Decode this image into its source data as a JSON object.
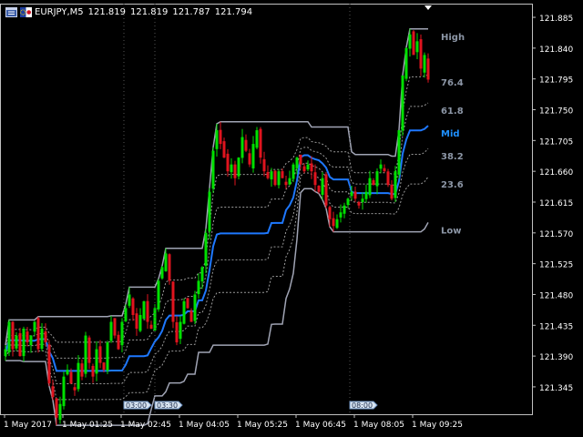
{
  "window": {
    "symbol": "EURJPY,M5",
    "ohlc": [
      "121.819",
      "121.819",
      "121.787",
      "121.794"
    ],
    "icons": [
      "chart-window-icon",
      "flag-icon"
    ]
  },
  "colors": {
    "background": "#000000",
    "bull": "#00e000",
    "bear": "#e0141e",
    "band": "#a0a4b4",
    "mid": "#1e78ff",
    "level_dash": "#9a9a9a",
    "label": "#8c96a6",
    "mid_label": "#1e90ff",
    "axis_text": "#ffffff"
  },
  "levels": [
    {
      "label": "High",
      "kind": "band"
    },
    {
      "label": "76.4",
      "kind": "fib"
    },
    {
      "label": "61.8",
      "kind": "fib"
    },
    {
      "label": "Mid",
      "kind": "mid"
    },
    {
      "label": "38.2",
      "kind": "fib"
    },
    {
      "label": "23.6",
      "kind": "fib"
    },
    {
      "label": "Low",
      "kind": "band"
    }
  ],
  "price_ticks": [
    "121.885",
    "121.840",
    "121.795",
    "121.750",
    "121.705",
    "121.660",
    "121.615",
    "121.570",
    "121.525",
    "121.480",
    "121.435",
    "121.390",
    "121.345"
  ],
  "time_ticks": [
    "1 May 2017",
    "1 May 01:25",
    "1 May 02:45",
    "1 May 04:05",
    "1 May 05:25",
    "1 May 06:45",
    "1 May 08:05",
    "1 May 09:25"
  ],
  "time_markers": [
    "03:00",
    "03:30",
    "08:00"
  ],
  "chart_data": {
    "type": "candlestick",
    "y_range": [
      121.305,
      121.905
    ],
    "bar_count": 117,
    "close_path": [
      121.4,
      121.44,
      121.4,
      121.42,
      121.39,
      121.43,
      121.41,
      121.42,
      121.44,
      121.4,
      121.43,
      121.41,
      121.35,
      121.33,
      121.3,
      121.32,
      121.36,
      121.37,
      121.35,
      121.34,
      121.38,
      121.36,
      121.42,
      121.38,
      121.36,
      121.4,
      121.38,
      121.37,
      121.41,
      121.44,
      121.42,
      121.4,
      121.44,
      121.46,
      121.48,
      121.45,
      121.43,
      121.45,
      121.47,
      121.44,
      121.43,
      121.46,
      121.5,
      121.52,
      121.54,
      121.5,
      121.44,
      121.41,
      121.44,
      121.47,
      121.46,
      121.44,
      121.48,
      121.5,
      121.52,
      121.57,
      121.63,
      121.69,
      121.72,
      121.7,
      121.68,
      121.66,
      121.67,
      121.65,
      121.68,
      121.71,
      121.69,
      121.67,
      121.7,
      121.72,
      121.68,
      121.66,
      121.65,
      121.66,
      121.64,
      121.66,
      121.65,
      121.64,
      121.65,
      121.67,
      121.68,
      121.67,
      121.66,
      121.67,
      121.66,
      121.64,
      121.63,
      121.65,
      121.61,
      121.59,
      121.58,
      121.59,
      121.6,
      121.61,
      121.62,
      121.63,
      121.62,
      121.61,
      121.62,
      121.63,
      121.65,
      121.64,
      121.66,
      121.67,
      121.66,
      121.64,
      121.62,
      121.66,
      121.72,
      121.8,
      121.84,
      121.86,
      121.83,
      121.85,
      121.81,
      121.83,
      121.794
    ]
  }
}
